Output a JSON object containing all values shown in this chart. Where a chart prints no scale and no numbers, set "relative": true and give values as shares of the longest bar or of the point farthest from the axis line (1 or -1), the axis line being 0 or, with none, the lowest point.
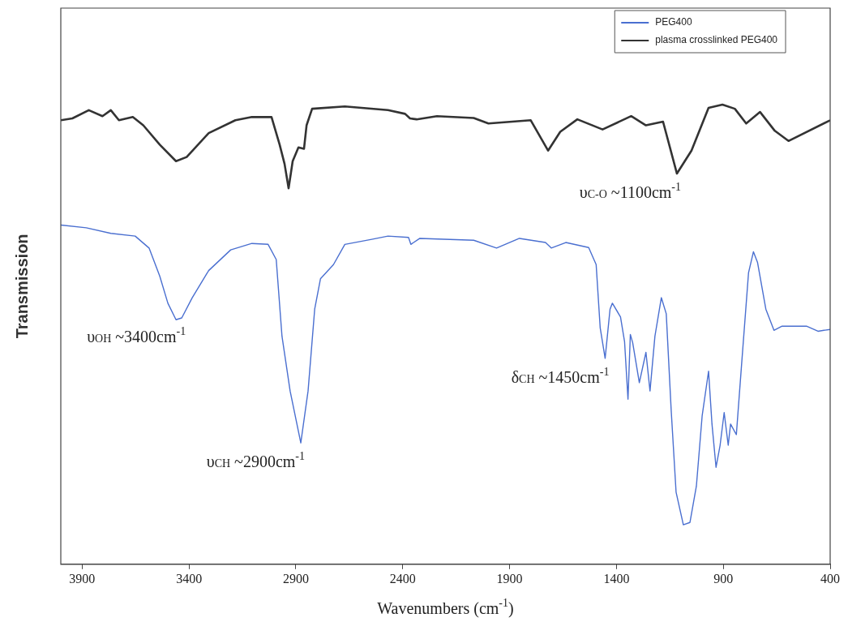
{
  "chart_data": {
    "type": "line",
    "xlabel": "Wavenumbers (cm$^{-1}$)",
    "ylabel": "Transmission",
    "relative": true,
    "xlim": [
      4000,
      400
    ],
    "xticks": [
      3900,
      3400,
      2900,
      2400,
      1900,
      1400,
      900,
      400
    ],
    "tick_labels": "x",
    "grid": false,
    "legend": "top right",
    "marker": "none",
    "line_style": "solid",
    "series": [
      {
        "name": "PEG400",
        "color": "#4a6fd0",
        "x": [
          4000,
          3881,
          3766,
          3652,
          3587,
          3537,
          3499,
          3461,
          3434,
          3385,
          3308,
          3205,
          3106,
          3030,
          2992,
          2965,
          2927,
          2877,
          2843,
          2812,
          2785,
          2724,
          2671,
          2545,
          2469,
          2373,
          2362,
          2320,
          2068,
          1961,
          1854,
          1732,
          1705,
          1637,
          1530,
          1495,
          1476,
          1453,
          1430,
          1419,
          1381,
          1362,
          1346,
          1335,
          1324,
          1293,
          1262,
          1243,
          1220,
          1190,
          1167,
          1144,
          1121,
          1087,
          1056,
          1026,
          999,
          969,
          953,
          934,
          915,
          896,
          877,
          866,
          839,
          816,
          782,
          759,
          740,
          701,
          663,
          625,
          511,
          457,
          400
        ],
        "values": [
          0.738,
          0.732,
          0.72,
          0.714,
          0.688,
          0.627,
          0.568,
          0.532,
          0.536,
          0.58,
          0.639,
          0.684,
          0.698,
          0.696,
          0.663,
          0.496,
          0.377,
          0.264,
          0.377,
          0.555,
          0.621,
          0.652,
          0.696,
          0.707,
          0.714,
          0.711,
          0.696,
          0.709,
          0.705,
          0.688,
          0.709,
          0.7,
          0.688,
          0.7,
          0.689,
          0.652,
          0.514,
          0.448,
          0.555,
          0.568,
          0.538,
          0.484,
          0.359,
          0.5,
          0.482,
          0.395,
          0.461,
          0.377,
          0.496,
          0.58,
          0.545,
          0.336,
          0.157,
          0.086,
          0.091,
          0.17,
          0.323,
          0.42,
          0.305,
          0.211,
          0.259,
          0.33,
          0.259,
          0.305,
          0.282,
          0.425,
          0.634,
          0.68,
          0.657,
          0.555,
          0.509,
          0.518,
          0.518,
          0.507,
          0.511
        ]
      },
      {
        "name": "plasma crosslinked PEG400",
        "color": "#333333",
        "x": [
          4000,
          3946,
          3869,
          3805,
          3766,
          3728,
          3663,
          3614,
          3537,
          3461,
          3411,
          3308,
          3183,
          3106,
          3014,
          2976,
          2953,
          2934,
          2915,
          2888,
          2862,
          2850,
          2824,
          2671,
          2469,
          2389,
          2366,
          2335,
          2240,
          2068,
          1999,
          1801,
          1720,
          1663,
          1583,
          1465,
          1331,
          1262,
          1182,
          1117,
          1049,
          969,
          904,
          846,
          793,
          728,
          659,
          595,
          400
        ],
        "values": [
          0.966,
          0.97,
          0.988,
          0.975,
          0.988,
          0.966,
          0.973,
          0.955,
          0.913,
          0.877,
          0.886,
          0.938,
          0.966,
          0.973,
          0.973,
          0.913,
          0.871,
          0.818,
          0.877,
          0.907,
          0.904,
          0.955,
          0.991,
          0.996,
          0.988,
          0.98,
          0.97,
          0.968,
          0.975,
          0.971,
          0.959,
          0.966,
          0.9,
          0.941,
          0.968,
          0.946,
          0.975,
          0.955,
          0.963,
          0.85,
          0.9,
          0.993,
          1.0,
          0.991,
          0.959,
          0.984,
          0.943,
          0.921,
          0.966
        ]
      }
    ],
    "annotations": [
      {
        "text": "υ$_{OH}$ ~3400cm$^{-1}$",
        "x": 3434,
        "y": 0.536
      },
      {
        "text": "υ$_{CH}$ ~2900cm$^{-1}$",
        "x": 2877,
        "y": 0.264
      },
      {
        "text": "δ$_{CH}$ ~1450cm$^{-1}$",
        "x": 1453,
        "y": 0.448
      },
      {
        "text": "υ$_{C-O}$ ~1100cm$^{-1}$",
        "x": 1117,
        "y": 0.85
      }
    ]
  }
}
